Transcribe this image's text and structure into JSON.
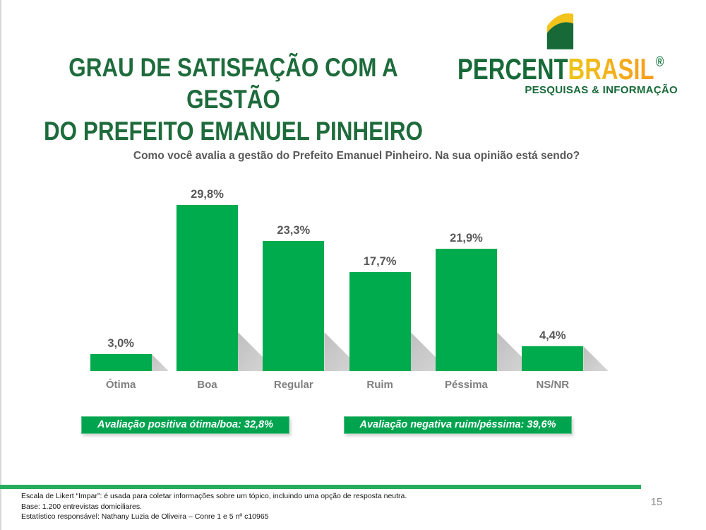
{
  "header": {
    "title_line1": "GRAU DE SATISFAÇÃO COM A GESTÃO",
    "title_line2": "DO PREFEITO EMANUEL PINHEIRO",
    "logo": {
      "part1": "PERCENT",
      "part2": "BRASIL",
      "registered": "®",
      "tagline": "PESQUISAS & INFORMAÇÃO",
      "colors": {
        "green": "#176A38",
        "yellow": "#EEC417",
        "orange": "#F59C1E"
      }
    }
  },
  "chart_data": {
    "type": "bar",
    "title": "Como você avalia a gestão do Prefeito Emanuel Pinheiro. Na sua opinião está sendo?",
    "categories": [
      "Ótima",
      "Boa",
      "Regular",
      "Ruim",
      "Péssima",
      "NS/NR"
    ],
    "values": [
      3.0,
      29.8,
      23.3,
      17.7,
      21.9,
      4.4
    ],
    "value_labels": [
      "3,0%",
      "29,8%",
      "23,3%",
      "17,7%",
      "21,9%",
      "4,4%"
    ],
    "bar_color": "#00AB4E",
    "shadow_color": "#C9C9C9",
    "xlabel": "",
    "ylabel": "",
    "ylim": [
      0,
      34
    ],
    "grid": false,
    "legend": false
  },
  "summary": {
    "positive": "Avaliação positiva ótima/boa: 32,8%",
    "negative": "Avaliação negativa ruim/péssima: 39,6%",
    "banner_color": "#00A44F"
  },
  "footer": {
    "notes": [
      "Escala de Likert “Impar”: é usada para coletar informações sobre um tópico, incluindo uma opção de resposta neutra.",
      "Base: 1.200 entrevistas domiciliares.",
      "Estatístico responsável: Nathany Luzia de Oliveira – Conre 1 e 5 nº c10965"
    ],
    "page_number": "15"
  }
}
